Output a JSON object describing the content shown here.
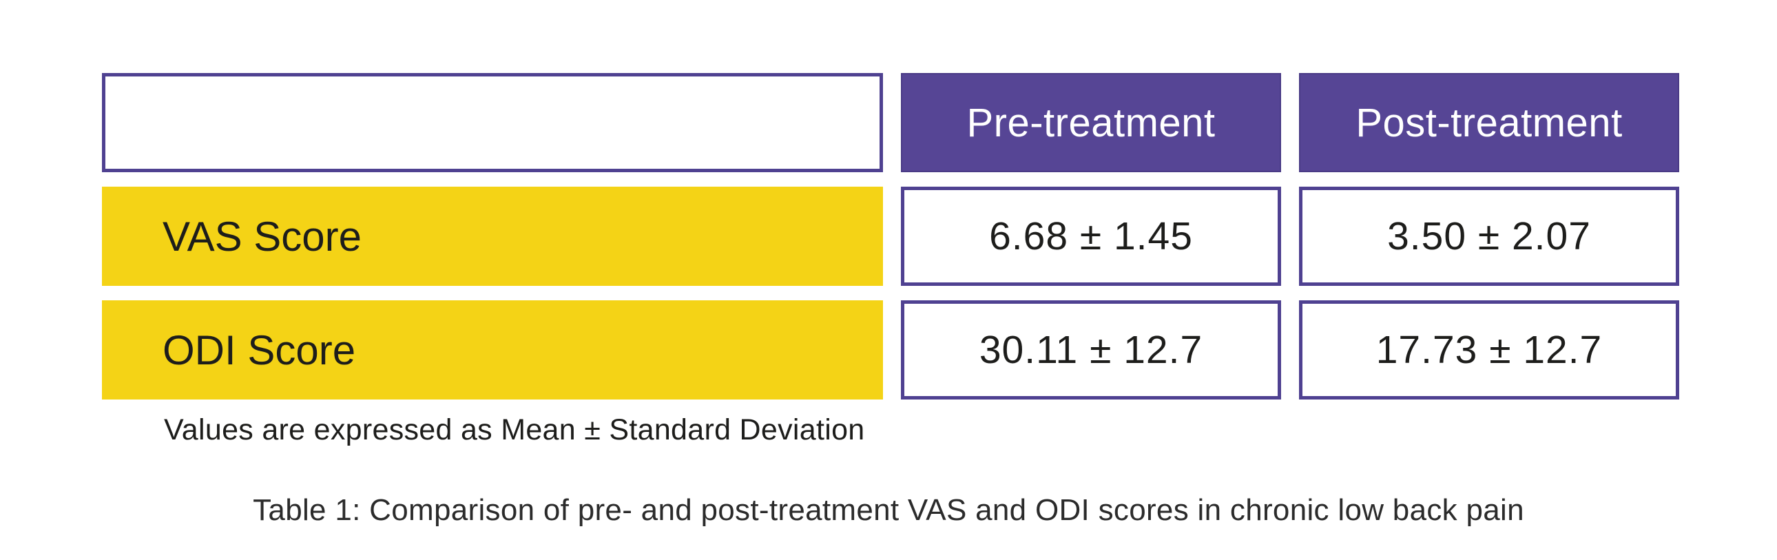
{
  "colors": {
    "header_purple": "#564595",
    "border_purple": "#4f4191",
    "label_yellow": "#f4d316",
    "text_dark": "#1d1d1b",
    "header_text": "#ffffff"
  },
  "table": {
    "columns": [
      {
        "label": ""
      },
      {
        "label": "Pre-treatment"
      },
      {
        "label": "Post-treatment"
      }
    ],
    "rows": [
      {
        "label": "VAS Score",
        "pre": "6.68 ± 1.45",
        "post": "3.50 ± 2.07"
      },
      {
        "label": "ODI Score",
        "pre": "30.11 ± 12.7",
        "post": "17.73 ± 12.7"
      }
    ],
    "note": "Values are expressed as Mean ± Standard Deviation",
    "caption": "Table 1: Comparison of pre- and post-treatment VAS and ODI scores in chronic low back pain"
  }
}
